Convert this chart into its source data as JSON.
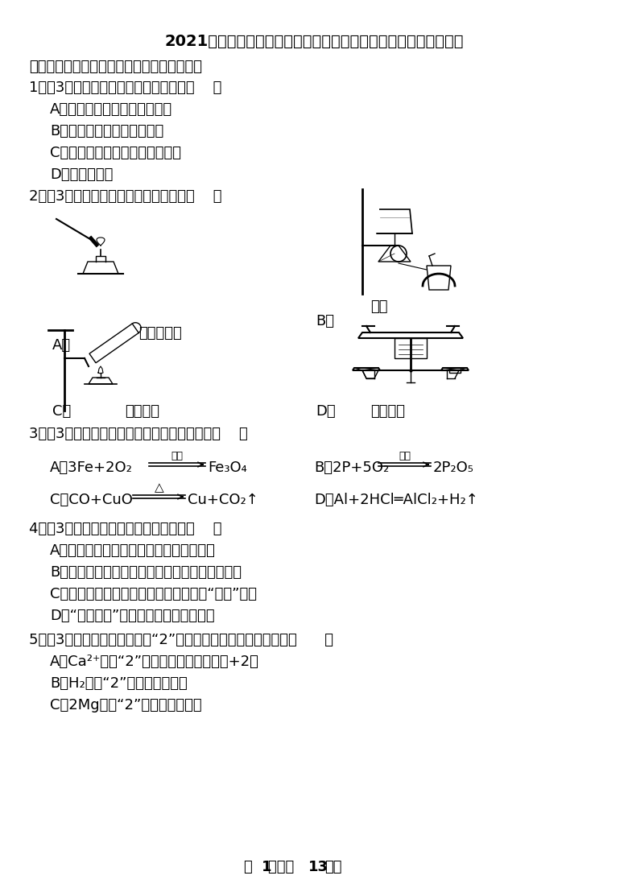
{
  "title": "2021年湖北省黄冈市、孝感市、和宁市三市联考中考化学一模试卷",
  "bg": "#ffffff",
  "section1": "一、选择题（每小题只有一个选项符合题意）",
  "q1": "1．（3分）下列变化属于化学变化的是（    ）",
  "q1a": "A．自来水经过蒸馏变为蒸馏水",
  "q1b": "B．以石墨为原料合成金就石",
  "q1c": "C．防毒面具中用活性炭防止中毒",
  "q1d": "D．将泥水过滤",
  "q2": "2．（3分）下列实验操作中，正确的是（    ）",
  "q2a_text": "点燃酒精灯",
  "q2b_text": "过滤",
  "q2c_text": "加热液体",
  "q2d_text": "称量固体",
  "q3": "3．（3分）下列化学方程式书写完全正确的是（    ）",
  "q3a_pre": "A．3Fe+2O₂",
  "q3a_cond": "点燃",
  "q3a_post": "Fe₃O₄",
  "q3b_pre": "B．2P+5O₂",
  "q3b_cond": "点燃",
  "q3b_post": "2P₂O₅",
  "q3c_pre": "C．CO+CuO",
  "q3c_cond": "△",
  "q3c_post": "Cu+CO₂↑",
  "q3d": "D．Al+2HCl═AlCl₂+H₂↑",
  "q4": "4．（3分）下列有关水的说法正确的是（    ）",
  "q4a": "A．水是一种取之不尽用之不窭的自然资源",
  "q4b": "B．水的净化方法中只有吸附和蒸馏能将硬水软化",
  "q4c": "C．倡导使用无磷洗衣粉目的是防止出现“水华”现象",
  "q4d": "D．“南水北调”说明我国水资源非常丰富",
  "q5": "5．（3分）下列对化学用语中“2”所表示意义的理解，正确的是（      ）",
  "q5a": "A．Ca²⁺中的“2”表示馒元素的化合价为+2价",
  "q5b": "B．H₂中的“2”表示两个氢原子",
  "q5c": "C．2Mg中的“2”表示两个镇元素",
  "footer_pre": "第 ",
  "footer_num1": "1",
  "footer_mid": "页（共 ",
  "footer_num2": "13",
  "footer_post": "页）"
}
